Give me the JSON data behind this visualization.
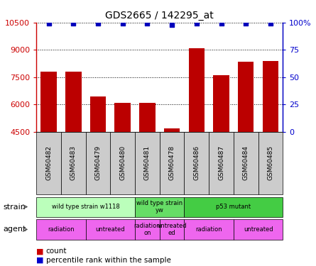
{
  "title": "GDS2665 / 142295_at",
  "samples": [
    "GSM60482",
    "GSM60483",
    "GSM60479",
    "GSM60480",
    "GSM60481",
    "GSM60478",
    "GSM60486",
    "GSM60487",
    "GSM60484",
    "GSM60485"
  ],
  "counts": [
    7800,
    7820,
    6450,
    6100,
    6100,
    4700,
    9100,
    7600,
    8350,
    8400
  ],
  "percentiles": [
    99,
    99,
    99,
    99,
    99,
    98,
    99,
    99,
    99,
    99
  ],
  "ylim_left": [
    4500,
    10500
  ],
  "yticks_left": [
    4500,
    6000,
    7500,
    9000,
    10500
  ],
  "ytick_labels_left": [
    "4500",
    "6000",
    "7500",
    "9000",
    "10500"
  ],
  "ylim_right": [
    0,
    100
  ],
  "yticks_right": [
    0,
    25,
    50,
    75,
    100
  ],
  "ytick_labels_right": [
    "0",
    "25",
    "50",
    "75",
    "100%"
  ],
  "bar_color": "#bb0000",
  "dot_color": "#0000bb",
  "left_axis_color": "#cc0000",
  "right_axis_color": "#0000cc",
  "sample_box_color": "#cccccc",
  "strain_groups": [
    {
      "label": "wild type strain w1118",
      "start": 0,
      "end": 4,
      "color": "#bbffbb"
    },
    {
      "label": "wild type strain\nyw",
      "start": 4,
      "end": 6,
      "color": "#66dd66"
    },
    {
      "label": "p53 mutant",
      "start": 6,
      "end": 10,
      "color": "#44cc44"
    }
  ],
  "agent_groups": [
    {
      "label": "radiation",
      "start": 0,
      "end": 2,
      "color": "#ee66ee"
    },
    {
      "label": "untreated",
      "start": 2,
      "end": 4,
      "color": "#ee66ee"
    },
    {
      "label": "radiation\non",
      "start": 4,
      "end": 5,
      "color": "#ee66ee"
    },
    {
      "label": "untreated\ned",
      "start": 5,
      "end": 6,
      "color": "#ee66ee"
    },
    {
      "label": "radiation",
      "start": 6,
      "end": 8,
      "color": "#ee66ee"
    },
    {
      "label": "untreated",
      "start": 8,
      "end": 10,
      "color": "#ee66ee"
    }
  ],
  "legend_count_color": "#cc0000",
  "legend_pct_color": "#0000cc"
}
